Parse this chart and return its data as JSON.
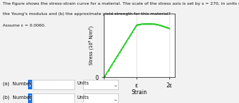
{
  "text_line1": "The figure shows the stress-strain curve for a material. The scale of the stress axis is set by s = 270, in units of 10⁶ N/m². What are (a)",
  "text_line2": "the Young's modulus and (b) the approximate yield strength for this material?",
  "text_line3": "Assume ε = 0.0060.",
  "xlabel": "Strain",
  "ylabel": "Stress (10⁶ N/m²)",
  "x_tick_labels": [
    "0",
    "ε",
    "2ε"
  ],
  "y_tick_labels": [
    "0"
  ],
  "s_value": 270,
  "epsilon": 0.006,
  "line_color": "#22cc22",
  "bg_color": "#f2f2f2",
  "plot_bg": "#ffffff",
  "grid_color": "#cccccc",
  "info_color": "#1a73e8",
  "figsize": [
    3.5,
    1.51
  ],
  "dpi": 100
}
